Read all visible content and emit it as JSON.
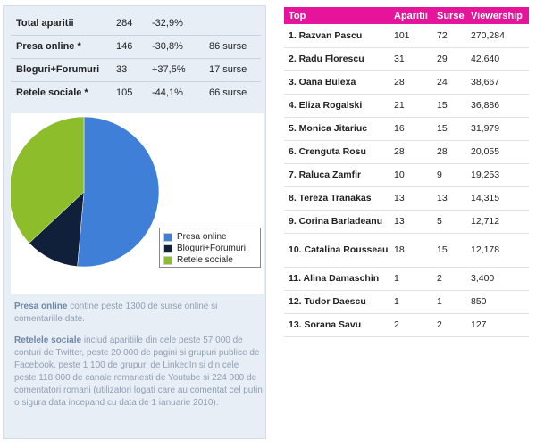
{
  "summary": [
    {
      "label": "Total aparitii",
      "count": "284",
      "change": "-32,9%",
      "sources": ""
    },
    {
      "label": "Presa online *",
      "count": "146",
      "change": "-30,8%",
      "sources": "86 surse"
    },
    {
      "label": "Bloguri+Forumuri",
      "count": "33",
      "change": "+37,5%",
      "sources": "17 surse"
    },
    {
      "label": "Retele sociale *",
      "count": "105",
      "change": "-44,1%",
      "sources": "66 surse"
    }
  ],
  "chart_data": {
    "type": "pie",
    "title": "",
    "slices": [
      {
        "label": "Presa online",
        "value": 146,
        "color": "#3f7fd8"
      },
      {
        "label": "Bloguri+Forumuri",
        "value": 33,
        "color": "#11203a"
      },
      {
        "label": "Retele sociale",
        "value": 105,
        "color": "#8dbd2a"
      }
    ],
    "legend_position": "right"
  },
  "notes": {
    "p1_bold": "Presa online",
    "p1_text": " contine peste 1300 de surse online si comentariile date.",
    "p2_bold": "Retelele sociale",
    "p2_text": " includ aparitiile din cele peste 57 000 de conturi de Twitter, peste 20 000 de pagini si grupuri publice de Facebook, peste 1 100 de grupuri de LinkedIn si din cele peste 118 000 de canale romanesti de Youtube si 224 000 de comentatori romani (utilizatori logati care au comentat cel putin o sigura data incepand cu data de 1 ianuarie 2010)."
  },
  "top_table": {
    "headers": [
      "Top",
      "Aparitii",
      "Surse",
      "Viewership"
    ],
    "rows": [
      {
        "name": "1. Razvan Pascu",
        "aparitii": "101",
        "surse": "72",
        "viewership": "270,284"
      },
      {
        "name": "2. Radu Florescu",
        "aparitii": "31",
        "surse": "29",
        "viewership": "42,640"
      },
      {
        "name": "3. Oana Bulexa",
        "aparitii": "28",
        "surse": "24",
        "viewership": "38,667"
      },
      {
        "name": "4. Eliza Rogalski",
        "aparitii": "21",
        "surse": "15",
        "viewership": "36,886"
      },
      {
        "name": "5. Monica Jitariuc",
        "aparitii": "16",
        "surse": "15",
        "viewership": "31,979"
      },
      {
        "name": "6. Crenguta Rosu",
        "aparitii": "28",
        "surse": "28",
        "viewership": "20,055"
      },
      {
        "name": "7. Raluca Zamfir",
        "aparitii": "10",
        "surse": "9",
        "viewership": "19,253"
      },
      {
        "name": "8. Tereza Tranakas",
        "aparitii": "13",
        "surse": "13",
        "viewership": "14,315"
      },
      {
        "name": "9. Corina Barladeanu",
        "aparitii": "13",
        "surse": "5",
        "viewership": "12,712"
      },
      {
        "name": "10. Catalina Rousseau",
        "aparitii": "18",
        "surse": "15",
        "viewership": "12,178"
      },
      {
        "name": "11. Alina Damaschin",
        "aparitii": "1",
        "surse": "2",
        "viewership": "3,400"
      },
      {
        "name": "12. Tudor Daescu",
        "aparitii": "1",
        "surse": "1",
        "viewership": "850"
      },
      {
        "name": "13. Sorana Savu",
        "aparitii": "2",
        "surse": "2",
        "viewership": "127"
      }
    ]
  }
}
